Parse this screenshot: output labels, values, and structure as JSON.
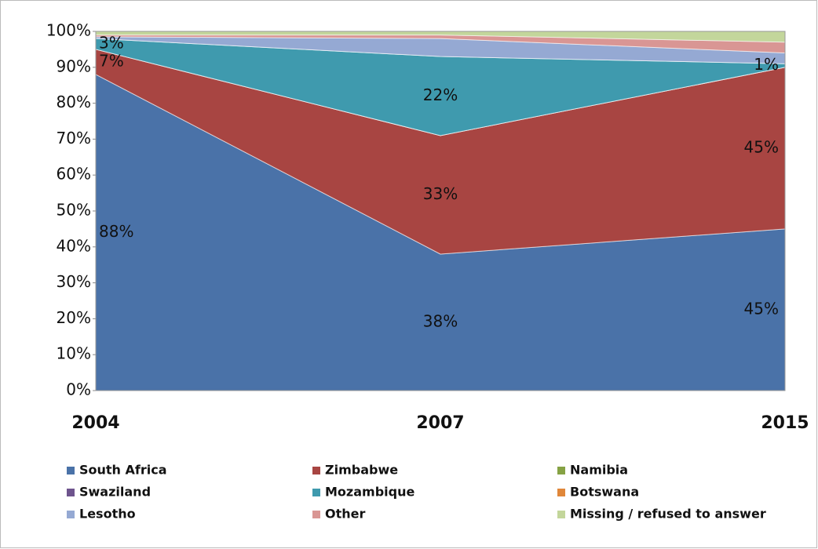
{
  "chart_data": {
    "type": "stacked_area",
    "categories": [
      "2004",
      "2007",
      "2015"
    ],
    "series": [
      {
        "name": "South Africa",
        "color": "#4a72a8",
        "values": [
          88,
          38,
          45
        ],
        "value_labels": [
          "88%",
          "38%",
          "45%"
        ]
      },
      {
        "name": "Zimbabwe",
        "color": "#a84542",
        "values": [
          7,
          33,
          45
        ],
        "value_labels": [
          "7%",
          "33%",
          "45%"
        ]
      },
      {
        "name": "Namibia",
        "color": "#86a244",
        "values": [
          0,
          0,
          0
        ]
      },
      {
        "name": "Swaziland",
        "color": "#6e548d",
        "values": [
          0,
          0,
          0
        ]
      },
      {
        "name": "Mozambique",
        "color": "#3f9aae",
        "values": [
          3,
          22,
          1
        ],
        "value_labels": [
          "3%",
          "22%",
          "1%"
        ]
      },
      {
        "name": "Botswana",
        "color": "#e0873a",
        "values": [
          0,
          0,
          0
        ]
      },
      {
        "name": "Lesotho",
        "color": "#95a9d3",
        "values": [
          0.5,
          5,
          3
        ]
      },
      {
        "name": "Other",
        "color": "#d99694",
        "values": [
          0.5,
          1,
          3
        ]
      },
      {
        "name": "Missing / refused to answer",
        "color": "#c3d69b",
        "values": [
          1,
          1,
          3
        ]
      }
    ],
    "ylim": [
      0,
      100
    ],
    "yticks": [
      {
        "value": 0,
        "label": "0%"
      },
      {
        "value": 10,
        "label": "10%"
      },
      {
        "value": 20,
        "label": "20%"
      },
      {
        "value": 30,
        "label": "30%"
      },
      {
        "value": 40,
        "label": "40%"
      },
      {
        "value": 50,
        "label": "50%"
      },
      {
        "value": 60,
        "label": "60%"
      },
      {
        "value": 70,
        "label": "70%"
      },
      {
        "value": 80,
        "label": "80%"
      },
      {
        "value": 90,
        "label": "90%"
      },
      {
        "value": 100,
        "label": "100%"
      }
    ],
    "legend": "bottom"
  }
}
